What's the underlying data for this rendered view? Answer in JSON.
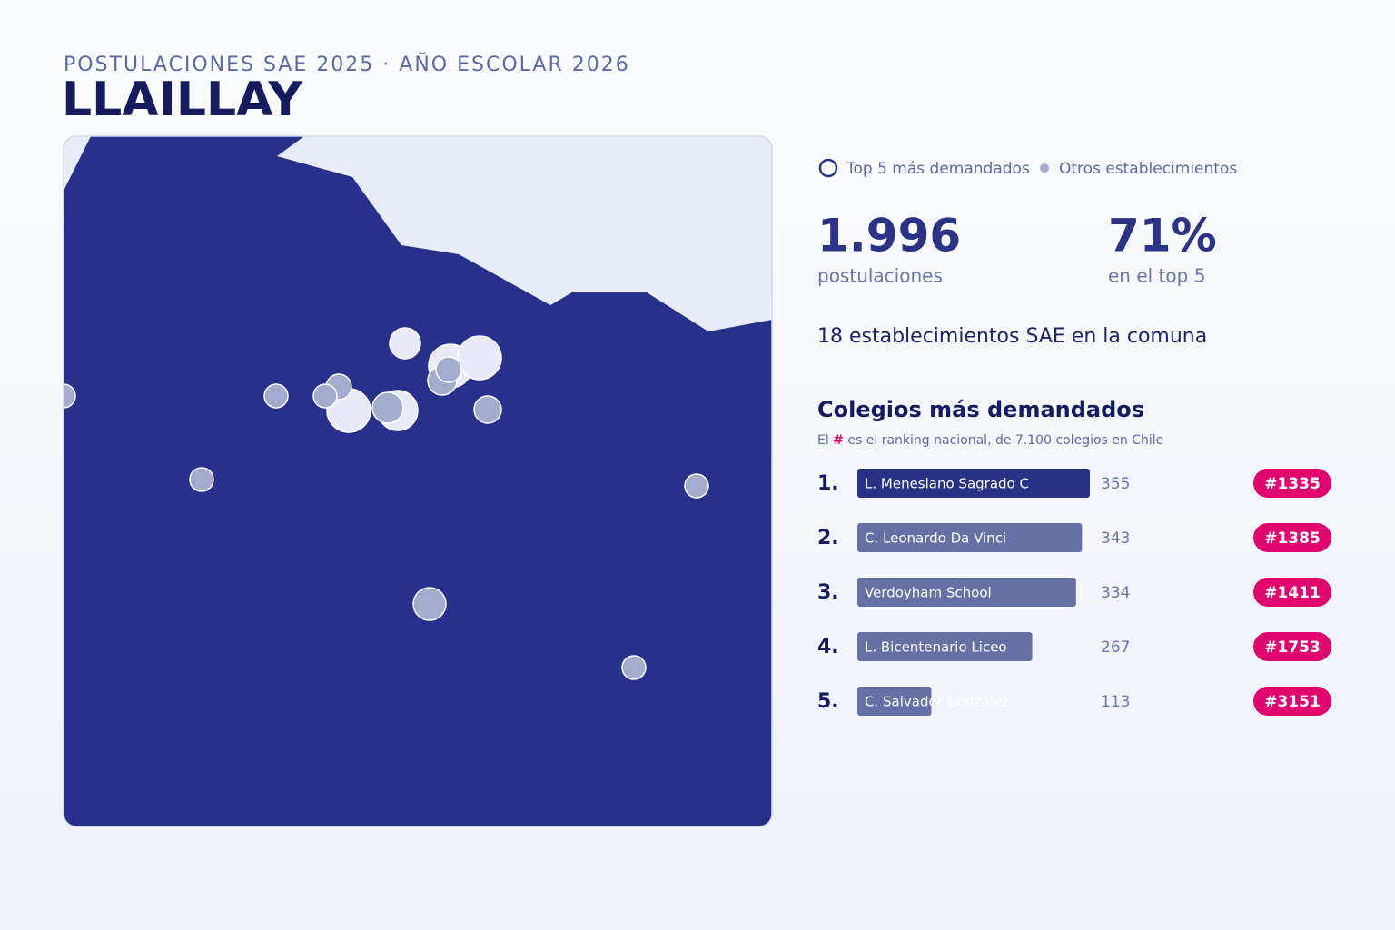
{
  "header": {
    "kicker": "POSTULACIONES SAE 2025 · AÑO ESCOLAR 2026",
    "title": "LLAILLAY"
  },
  "legend": {
    "top": "Top 5 más demandados",
    "others": "Otros establecimientos"
  },
  "stats": [
    {
      "value": "1.996",
      "label": "postulaciones"
    },
    {
      "value": "71%",
      "label": "en el top 5"
    }
  ],
  "summary": "18 establecimientos SAE en la comuna",
  "chart_data": {
    "type": "bar",
    "title": "Colegios más demandados",
    "subtitle": [
      "El",
      "#",
      "es el ranking nacional, de 7.100 colegios en Chile"
    ],
    "ranks": [
      "1.",
      "2.",
      "3.",
      "4.",
      "5."
    ],
    "categories": [
      "L. Menesiano Sagrado C",
      "C. Leonardo Da Vinci",
      "Verdoyham School",
      "L. Bicentenario Liceo",
      "C. Salvador Gonzalez"
    ],
    "values": [
      355,
      343,
      334,
      267,
      113
    ],
    "national_rank": [
      "#1335",
      "#1385",
      "#1411",
      "#1753",
      "#3151"
    ],
    "color": "#6470a6",
    "highlight_color": "#283287",
    "badge_color": "#e0066e"
  }
}
